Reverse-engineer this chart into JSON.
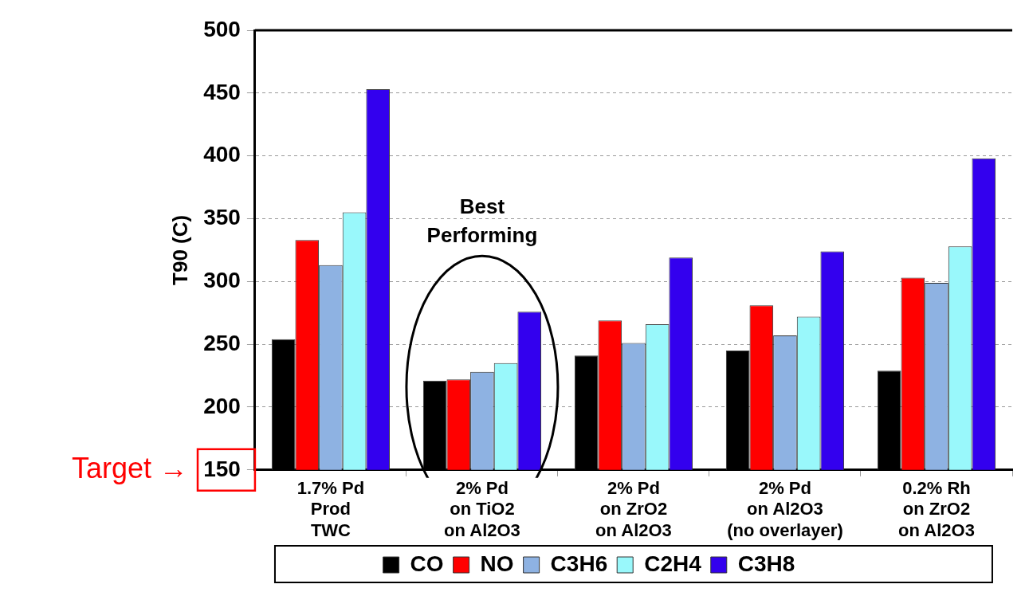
{
  "chart_data": {
    "type": "bar",
    "ylabel": "T90 (C)",
    "categories": [
      "1.7% Pd\nProd\nTWC",
      "2% Pd\non TiO2\non Al2O3",
      "2% Pd\non ZrO2\non Al2O3",
      "2% Pd\non Al2O3\n(no overlayer)",
      "0.2% Rh\non ZrO2\non Al2O3"
    ],
    "series": [
      {
        "name": "CO",
        "color": "#000000",
        "values": [
          254,
          221,
          241,
          245,
          229
        ]
      },
      {
        "name": "NO",
        "color": "#ff0000",
        "values": [
          333,
          222,
          269,
          281,
          303
        ]
      },
      {
        "name": "C3H6",
        "color": "#8eb2e2",
        "values": [
          313,
          228,
          251,
          257,
          299
        ]
      },
      {
        "name": "C2H4",
        "color": "#99f8fb",
        "values": [
          355,
          235,
          266,
          272,
          328
        ]
      },
      {
        "name": "C3H8",
        "color": "#3300ee",
        "values": [
          453,
          276,
          319,
          324,
          398
        ]
      }
    ],
    "ylim": [
      150,
      500
    ],
    "yticks": [
      150,
      200,
      250,
      300,
      350,
      400,
      450,
      500
    ],
    "grid": "y",
    "legend": "bottom",
    "annotations": [
      "Best Performing",
      "Target →"
    ]
  }
}
